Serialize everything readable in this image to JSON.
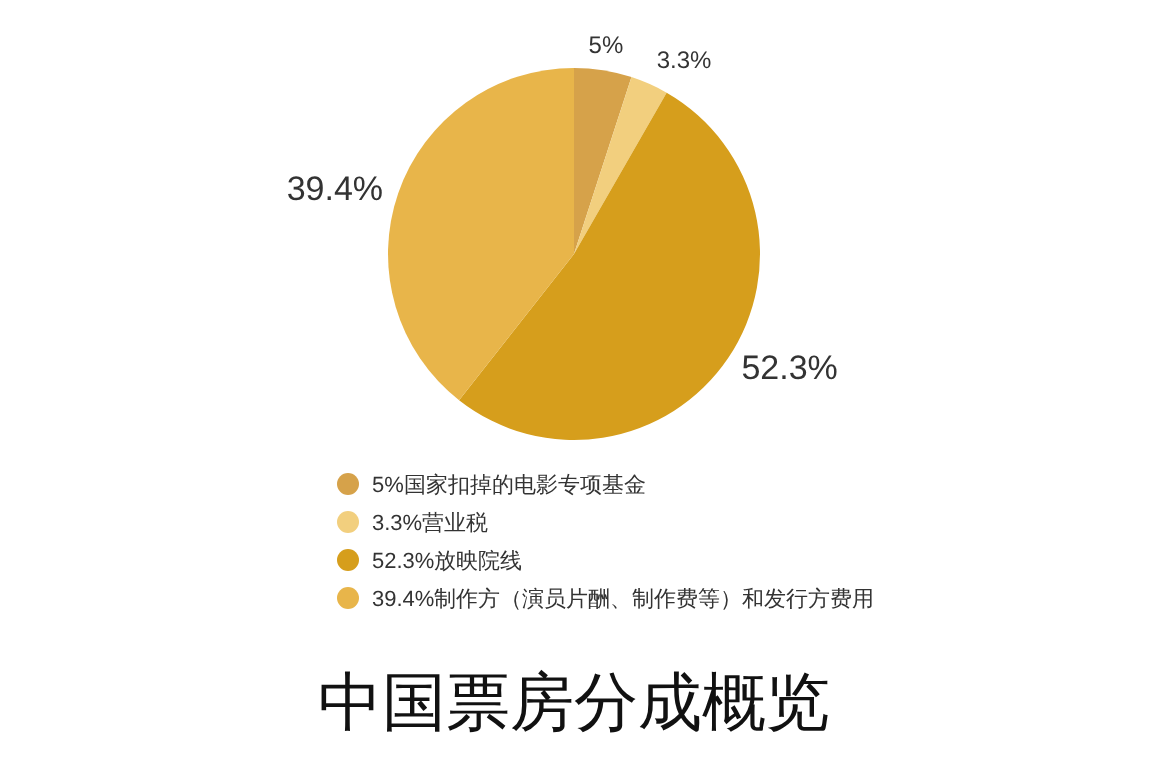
{
  "chart_data": {
    "type": "pie",
    "title": "中国票房分成概览",
    "categories": [
      "5%国家扣掉的电影专项基金",
      "3.3%营业税",
      "52.3%放映院线",
      "39.4%制作方（演员片酬、制作费等）和发行方费用"
    ],
    "values": [
      5,
      3.3,
      52.3,
      39.4
    ],
    "colors": [
      "#d6a24a",
      "#f2cf7e",
      "#d69e1c",
      "#e8b54a"
    ],
    "value_labels": [
      "5%",
      "3.3%",
      "52.3%",
      "39.4%"
    ],
    "legend": "bottom"
  }
}
